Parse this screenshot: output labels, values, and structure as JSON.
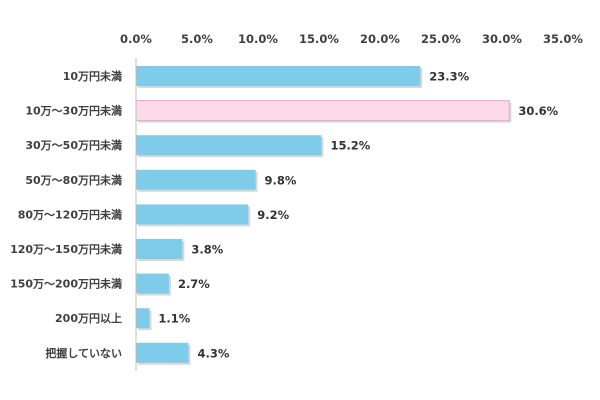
{
  "chart_data": {
    "type": "bar",
    "orientation": "horizontal",
    "categories": [
      "10万円未満",
      "10万～30万円未満",
      "30万～50万円未満",
      "50万～80万円未満",
      "80万～120万円未満",
      "120万～150万円未満",
      "150万～200万円未満",
      "200万円以上",
      "把握していない"
    ],
    "values": [
      23.3,
      30.6,
      15.2,
      9.8,
      9.2,
      3.8,
      2.7,
      1.1,
      4.3
    ],
    "value_labels": [
      "23.3%",
      "30.6%",
      "15.2%",
      "9.8%",
      "9.2%",
      "3.8%",
      "2.7%",
      "1.1%",
      "4.3%"
    ],
    "xlim": [
      0,
      35
    ],
    "x_ticks": [
      0,
      5,
      10,
      15,
      20,
      25,
      30,
      35
    ],
    "x_tick_labels": [
      "0.0%",
      "5.0%",
      "10.0%",
      "15.0%",
      "20.0%",
      "25.0%",
      "30.0%",
      "35.0%"
    ],
    "axis_position": "top",
    "grid": false,
    "legend": "none",
    "title": "",
    "xlabel": "",
    "ylabel": "",
    "colors": {
      "bar": "#7ecbea",
      "highlight": "#fbd9e9",
      "highlight_stroke": "#e9a9c7",
      "axis": "#bfbfbf",
      "shadow": "#b8b8b8"
    },
    "highlight_index": 1
  }
}
